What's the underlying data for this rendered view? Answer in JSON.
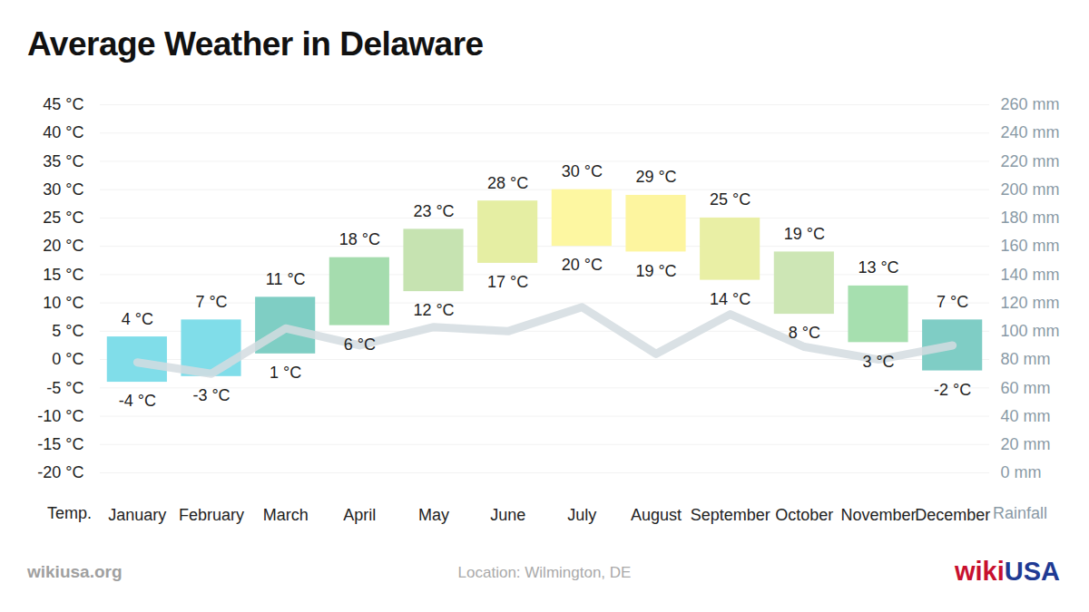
{
  "chart_data": {
    "type": "bar",
    "title": "Average Weather in Delaware",
    "categories": [
      "January",
      "February",
      "March",
      "April",
      "May",
      "June",
      "July",
      "August",
      "September",
      "October",
      "November",
      "December"
    ],
    "series": [
      {
        "type": "bar",
        "low": [
          -4,
          -3,
          1,
          6,
          12,
          17,
          20,
          19,
          14,
          8,
          3,
          -2
        ],
        "low_labels": [
          "-4 °C",
          "-3 °C",
          "1 °C",
          "6 °C",
          "12 °C",
          "17 °C",
          "20 °C",
          "19 °C",
          "14 °C",
          "8 °C",
          "3 °C",
          "-2 °C"
        ],
        "values": [
          4,
          7,
          11,
          18,
          23,
          28,
          30,
          29,
          25,
          19,
          13,
          7
        ],
        "value_labels": [
          "4 °C",
          "7 °C",
          "11 °C",
          "18 °C",
          "23 °C",
          "28 °C",
          "30 °C",
          "29 °C",
          "25 °C",
          "19 °C",
          "13 °C",
          "7 °C"
        ],
        "colors": [
          "#80dde9",
          "#80dde9",
          "#7fcec4",
          "#a5dcae",
          "#c6e3b1",
          "#e5eea3",
          "#fdf7a1",
          "#fdf59f",
          "#e9efa5",
          "#cde6b5",
          "#a6dfaf",
          "#7fcdc5"
        ]
      },
      {
        "type": "line",
        "axis": "y2",
        "color": "#d3dce0",
        "values": [
          78,
          70,
          102,
          90,
          103,
          100,
          117,
          84,
          112,
          89,
          80,
          90
        ]
      }
    ],
    "ylim": [
      -20,
      45
    ],
    "yticks": [
      {
        "value": -20,
        "label": "-20 °C"
      },
      {
        "value": -15,
        "label": "-15 °C"
      },
      {
        "value": -10,
        "label": "-10 °C"
      },
      {
        "value": -5,
        "label": "-5 °C"
      },
      {
        "value": 0,
        "label": "0 °C"
      },
      {
        "value": 5,
        "label": "5 °C"
      },
      {
        "value": 10,
        "label": "10 °C"
      },
      {
        "value": 15,
        "label": "15 °C"
      },
      {
        "value": 20,
        "label": "20 °C"
      },
      {
        "value": 25,
        "label": "25 °C"
      },
      {
        "value": 30,
        "label": "30 °C"
      },
      {
        "value": 35,
        "label": "35 °C"
      },
      {
        "value": 40,
        "label": "40 °C"
      },
      {
        "value": 45,
        "label": "45 °C"
      }
    ],
    "y2lim": [
      0,
      260
    ],
    "y2ticks": [
      {
        "value": 0,
        "label": "0 mm"
      },
      {
        "value": 20,
        "label": "20 mm"
      },
      {
        "value": 40,
        "label": "40 mm"
      },
      {
        "value": 60,
        "label": "60 mm"
      },
      {
        "value": 80,
        "label": "80 mm"
      },
      {
        "value": 100,
        "label": "100 mm"
      },
      {
        "value": 120,
        "label": "120 mm"
      },
      {
        "value": 140,
        "label": "140 mm"
      },
      {
        "value": 160,
        "label": "160 mm"
      },
      {
        "value": 180,
        "label": "180 mm"
      },
      {
        "value": 200,
        "label": "200 mm"
      },
      {
        "value": 220,
        "label": "220 mm"
      },
      {
        "value": 240,
        "label": "240 mm"
      },
      {
        "value": 260,
        "label": "260 mm"
      }
    ],
    "y_label": "Temp.",
    "y2_label": "Rainfall",
    "data_labels": true,
    "grid": true,
    "footer": {
      "source": "wikiusa.org",
      "location": "Location: Wilmington, DE",
      "logo": [
        "wiki",
        "USA"
      ]
    }
  }
}
